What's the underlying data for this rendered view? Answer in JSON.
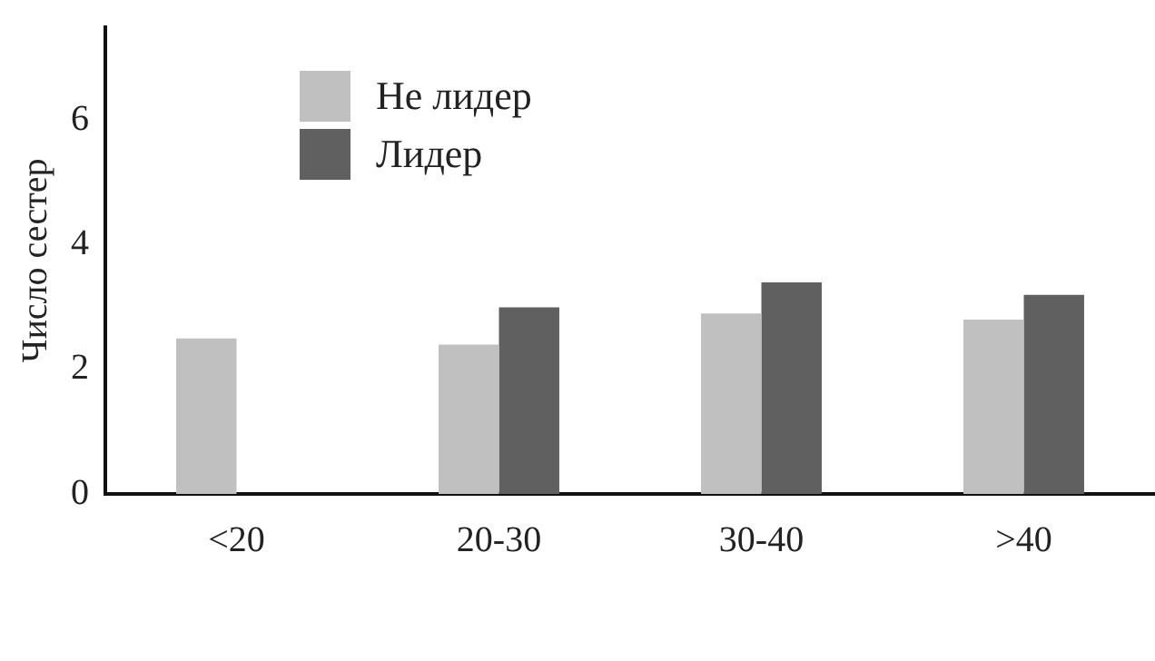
{
  "chart_data": {
    "type": "bar",
    "ylabel": "Число сестер",
    "categories": [
      "<20",
      "20-30",
      "30-40",
      ">40"
    ],
    "series": [
      {
        "name": "Не лидер",
        "color": "#c0c0c0",
        "values": [
          2.5,
          2.4,
          2.9,
          2.8
        ]
      },
      {
        "name": "Лидер",
        "color": "#606060",
        "values": [
          null,
          3.0,
          3.4,
          3.2
        ]
      }
    ],
    "ylim": [
      0,
      7.5
    ],
    "yticks": [
      0,
      2,
      4,
      6
    ],
    "grid": false,
    "legend": "top left"
  }
}
